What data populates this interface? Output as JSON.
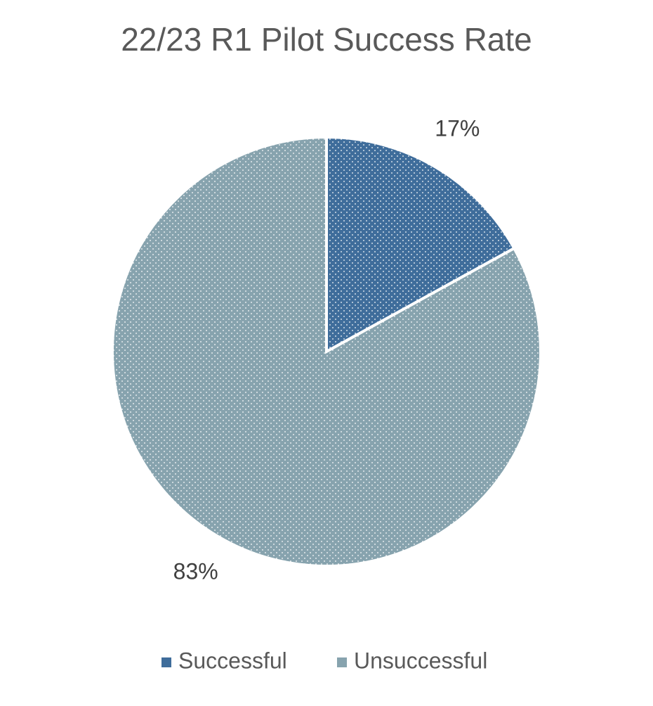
{
  "chart_data": {
    "type": "pie",
    "title": "22/23 R1 Pilot Success Rate",
    "categories": [
      "Successful",
      "Unsuccessful"
    ],
    "values": [
      17,
      83
    ],
    "value_labels": [
      "17%",
      "83%"
    ],
    "colors": [
      "#3f6d9b",
      "#87a3ae"
    ],
    "legend": "bottom"
  }
}
